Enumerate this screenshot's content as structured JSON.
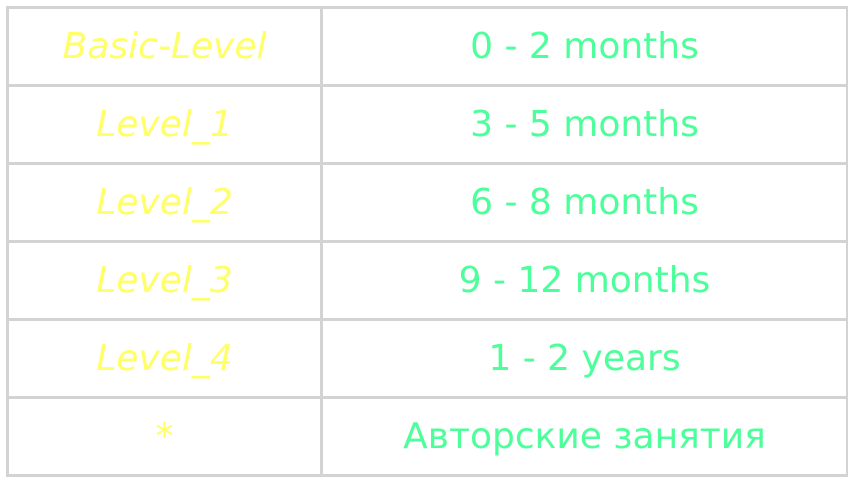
{
  "colors": {
    "level_text": "#ffff66",
    "duration_text": "#4dff9a",
    "border": "#d3d3d3",
    "background": "#ffffff"
  },
  "rows": [
    {
      "level": "Basic-Level",
      "duration": "0 - 2 months"
    },
    {
      "level": "Level_1",
      "duration": "3 - 5 months"
    },
    {
      "level": "Level_2",
      "duration": "6 - 8 months"
    },
    {
      "level": "Level_3",
      "duration": "9 - 12 months"
    },
    {
      "level": "Level_4",
      "duration": "1 - 2 years"
    },
    {
      "level": "*",
      "duration": "Авторские занятия"
    }
  ]
}
